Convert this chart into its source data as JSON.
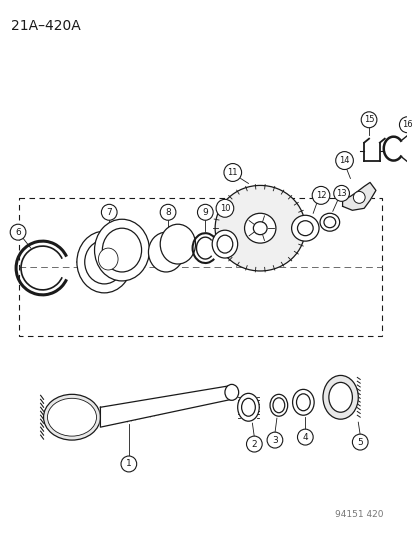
{
  "title": "21A–420A",
  "footer": "94151 420",
  "bg_color": "#ffffff",
  "line_color": "#1a1a1a",
  "fig_width": 4.14,
  "fig_height": 5.33,
  "dpi": 100
}
